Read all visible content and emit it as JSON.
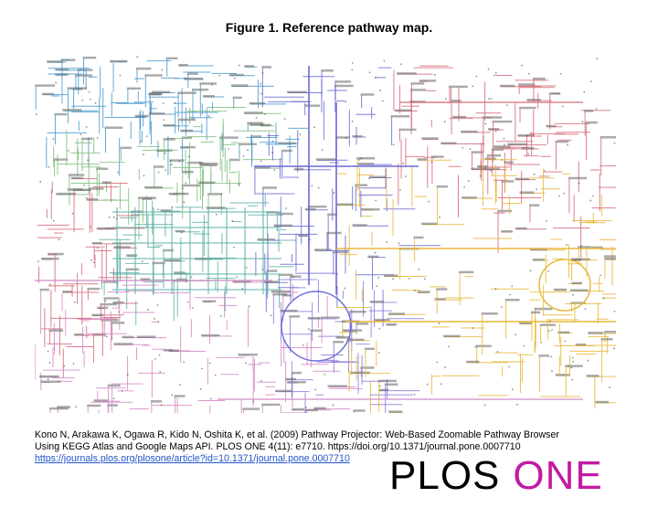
{
  "figure": {
    "title": "Figure 1. Reference pathway map."
  },
  "citation": {
    "text": "Kono N, Arakawa K, Ogawa R, Kido N, Oshita K, et al. (2009) Pathway Projector: Web-Based Zoomable Pathway Browser Using KEGG Atlas and Google Maps API. PLOS ONE 4(11): e7710. https://doi.org/10.1371/journal.pone.0007710",
    "link": "https://journals.plos.org/plosone/article?id=10.1371/journal.pone.0007710"
  },
  "logo": {
    "plos": "PLOS",
    "one": "ONE"
  },
  "colors": {
    "carbohydrate": "#6b6bd6",
    "lipid": "#4a9ad0",
    "nucleotide": "#d66b7a",
    "amino_acid": "#e8b83a",
    "glycan": "#5fb0a8",
    "cofactor": "#d489c6",
    "energy": "#8c7ed9",
    "secondary": "#7fbf7f",
    "brand_one": "#c21aa3"
  }
}
